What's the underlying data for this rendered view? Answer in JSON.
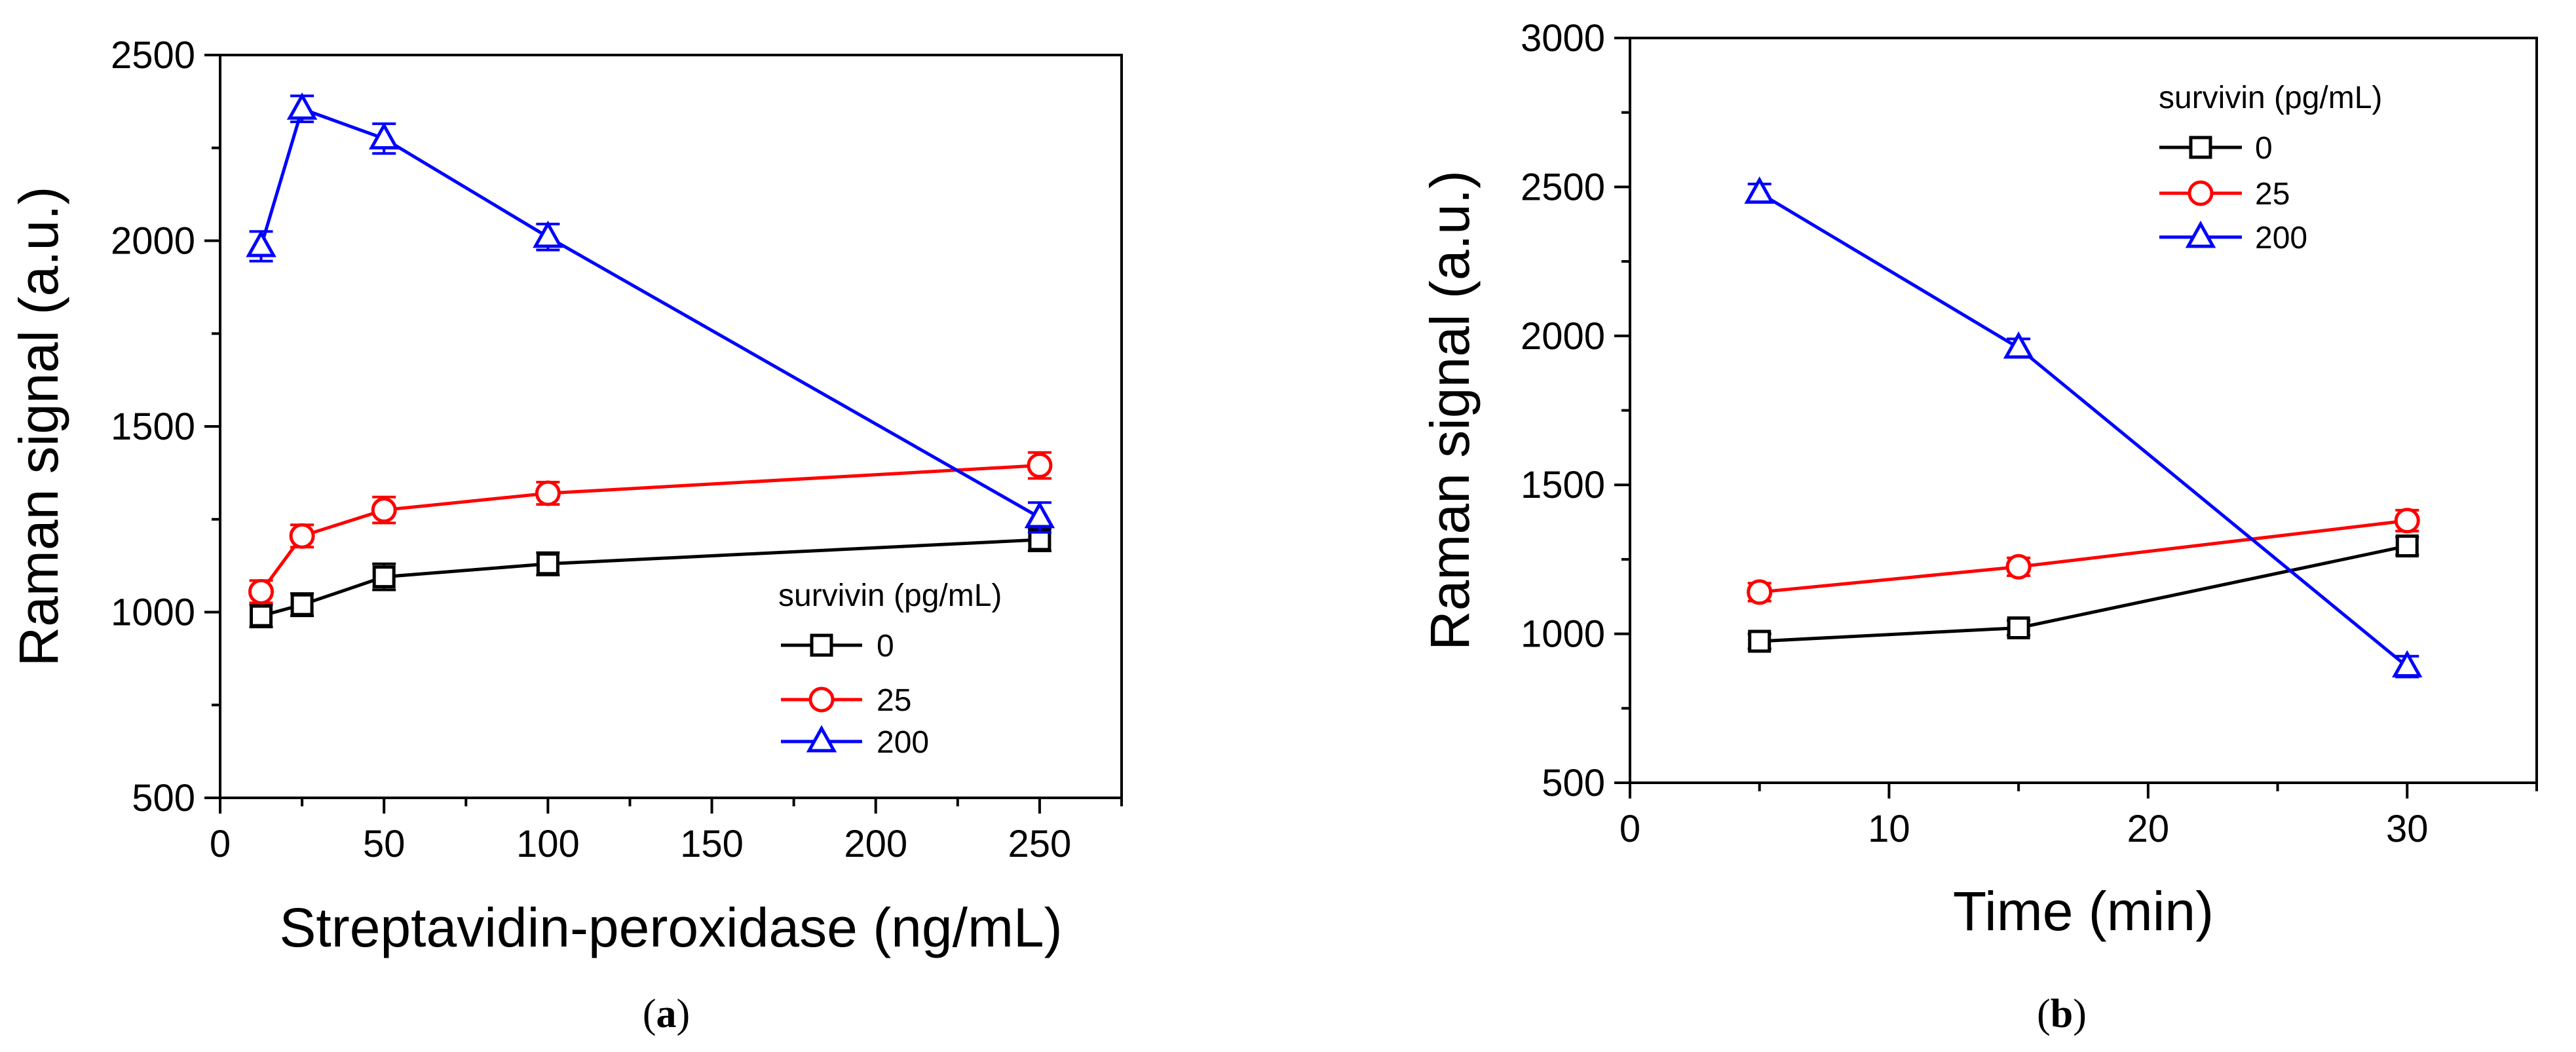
{
  "chart_data": [
    {
      "type": "line",
      "panel": "(a)",
      "panel_letter": "a",
      "xlabel": "Streptavidin-peroxidase (ng/mL)",
      "ylabel": "Raman signal (a.u.)",
      "xlim": [
        0,
        275
      ],
      "ylim": [
        500,
        2500
      ],
      "xticks": [
        0,
        50,
        100,
        150,
        200,
        250
      ],
      "xminor": 25,
      "yticks": [
        500,
        1000,
        1500,
        2000,
        2500
      ],
      "yminor": 250,
      "legend_title": "survivin (pg/mL)",
      "legend_position": "bottom-right",
      "x": [
        12.5,
        25,
        50,
        100,
        250
      ],
      "series": [
        {
          "name": "0",
          "color": "#000000",
          "marker": "square",
          "values": [
            990,
            1020,
            1095,
            1130,
            1195
          ],
          "errors": [
            30,
            30,
            35,
            30,
            30
          ]
        },
        {
          "name": "25",
          "color": "#ff0000",
          "marker": "circle",
          "values": [
            1055,
            1205,
            1275,
            1320,
            1395
          ],
          "errors": [
            30,
            30,
            35,
            30,
            35
          ]
        },
        {
          "name": "200",
          "color": "#0000ff",
          "marker": "triangle",
          "values": [
            1985,
            2355,
            2275,
            2010,
            1255
          ],
          "errors": [
            40,
            35,
            40,
            35,
            40
          ]
        }
      ]
    },
    {
      "type": "line",
      "panel": "(b)",
      "panel_letter": "b",
      "xlabel": "Time (min)",
      "ylabel": "Raman signal (a.u.)",
      "xlim": [
        0,
        35
      ],
      "ylim": [
        500,
        3000
      ],
      "xticks": [
        0,
        10,
        20,
        30
      ],
      "xminor": 5,
      "yticks": [
        500,
        1000,
        1500,
        2000,
        2500,
        3000
      ],
      "yminor": 250,
      "legend_title": "survivin (pg/mL)",
      "legend_position": "top-right",
      "x": [
        5,
        15,
        30
      ],
      "series": [
        {
          "name": "0",
          "color": "#000000",
          "marker": "square",
          "values": [
            975,
            1020,
            1295
          ],
          "errors": [
            25,
            25,
            30
          ]
        },
        {
          "name": "25",
          "color": "#ff0000",
          "marker": "circle",
          "values": [
            1140,
            1225,
            1380
          ],
          "errors": [
            30,
            30,
            35
          ]
        },
        {
          "name": "200",
          "color": "#0000ff",
          "marker": "triangle",
          "values": [
            2480,
            1960,
            890
          ],
          "errors": [
            30,
            30,
            35
          ]
        }
      ]
    }
  ]
}
